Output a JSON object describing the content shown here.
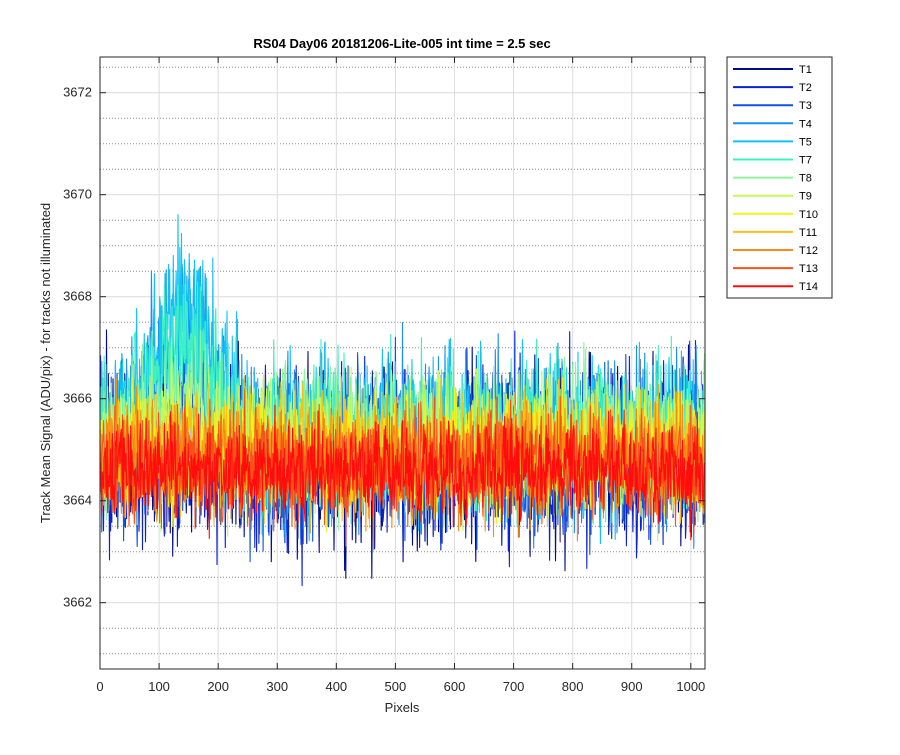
{
  "chart_data": {
    "type": "line",
    "title": "RS04 Day06 20181206-Lite-005 int time = 2.5 sec",
    "xlabel": "Pixels",
    "ylabel": "Track Mean Signal (ADU/pix) - for tracks not illuminated",
    "xlim": [
      0,
      1024
    ],
    "ylim": [
      3660.7,
      3672.7
    ],
    "xticks": [
      0,
      100,
      200,
      300,
      400,
      500,
      600,
      700,
      800,
      900,
      1000
    ],
    "yticks": [
      3662,
      3664,
      3666,
      3668,
      3670,
      3672
    ],
    "minor_yticks": [
      3661,
      3661.5,
      3662.5,
      3663,
      3663.5,
      3664.5,
      3665,
      3665.5,
      3666.5,
      3667,
      3667.5,
      3668.5,
      3669,
      3669.5,
      3670.5,
      3671,
      3671.5,
      3672.5
    ],
    "grid": true,
    "legend_position": "outside-top-right",
    "n_points": 1024,
    "series": [
      {
        "name": "T1",
        "color": "#000c8f",
        "mean": 3664.9,
        "spread": 1.25,
        "bump": 0.0
      },
      {
        "name": "T2",
        "color": "#0a22d6",
        "mean": 3664.9,
        "spread": 1.2,
        "bump": 0.0
      },
      {
        "name": "T3",
        "color": "#0f52e6",
        "mean": 3665.0,
        "spread": 1.15,
        "bump": 0.3
      },
      {
        "name": "T4",
        "color": "#1b8fee",
        "mean": 3665.2,
        "spread": 1.1,
        "bump": 2.6
      },
      {
        "name": "T5",
        "color": "#12c2f5",
        "mean": 3665.3,
        "spread": 1.05,
        "bump": 3.3
      },
      {
        "name": "T7",
        "color": "#3ff0c4",
        "mean": 3665.3,
        "spread": 1.0,
        "bump": 2.4
      },
      {
        "name": "T8",
        "color": "#8ff49a",
        "mean": 3665.2,
        "spread": 0.95,
        "bump": 1.0
      },
      {
        "name": "T9",
        "color": "#c6f75a",
        "mean": 3665.1,
        "spread": 0.9,
        "bump": 0.4
      },
      {
        "name": "T10",
        "color": "#f2f21e",
        "mean": 3665.0,
        "spread": 0.85,
        "bump": 0.2
      },
      {
        "name": "T11",
        "color": "#f9c018",
        "mean": 3664.9,
        "spread": 0.8,
        "bump": 0.1
      },
      {
        "name": "T12",
        "color": "#f98a12",
        "mean": 3664.8,
        "spread": 0.8,
        "bump": 0.0
      },
      {
        "name": "T13",
        "color": "#f6521a",
        "mean": 3664.7,
        "spread": 0.75,
        "bump": 0.0
      },
      {
        "name": "T14",
        "color": "#ff0d0d",
        "mean": 3664.6,
        "spread": 0.65,
        "bump": 0.0
      }
    ]
  }
}
